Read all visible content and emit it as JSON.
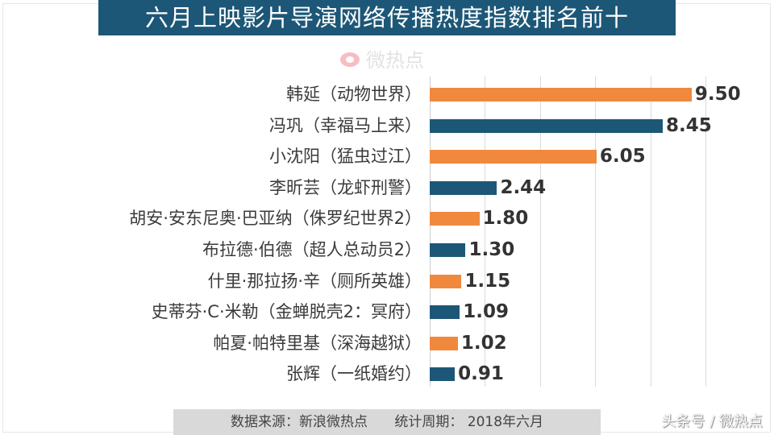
{
  "title": "六月上映影片导演网络传播热度指数排名前十",
  "watermark": {
    "icon": "weibo-eye-icon",
    "text": "微热点"
  },
  "colors": {
    "title_bg": "#1d5777",
    "orange": "#f0883e",
    "blue": "#1d5777",
    "footer_bg": "#d9d9d9"
  },
  "footer": {
    "source": "数据来源：新浪微热点",
    "period": "统计周期： 2018年六月"
  },
  "credit": "头条号 / 微热点",
  "chart_data": {
    "type": "bar",
    "orientation": "horizontal",
    "title": "六月上映影片导演网络传播热度指数排名前十",
    "xlabel": "",
    "ylabel": "",
    "xlim": [
      0,
      10
    ],
    "grid": true,
    "gridlines_x": [
      0,
      2,
      4,
      6,
      8,
      10
    ],
    "legend": null,
    "categories": [
      "韩延（动物世界）",
      "冯巩（幸福马上来）",
      "小沈阳（猛虫过江）",
      "李昕芸（龙虾刑警）",
      "胡安·安东尼奥·巴亚纳（侏罗纪世界2）",
      "布拉德·伯德（超人总动员2）",
      "什里·那拉扬·辛（厕所英雄）",
      "史蒂芬·C·米勒（金蝉脱壳2：冥府）",
      "帕夏·帕特里基（深海越狱）",
      "张辉（一纸婚约）"
    ],
    "values": [
      9.5,
      8.45,
      6.05,
      2.44,
      1.8,
      1.3,
      1.15,
      1.09,
      1.02,
      0.91
    ],
    "value_labels": [
      "9.50",
      "8.45",
      "6.05",
      "2.44",
      "1.80",
      "1.30",
      "1.15",
      "1.09",
      "1.02",
      "0.91"
    ],
    "bar_colors": [
      "#f0883e",
      "#1d5777",
      "#f0883e",
      "#1d5777",
      "#f0883e",
      "#1d5777",
      "#f0883e",
      "#1d5777",
      "#f0883e",
      "#1d5777"
    ]
  }
}
